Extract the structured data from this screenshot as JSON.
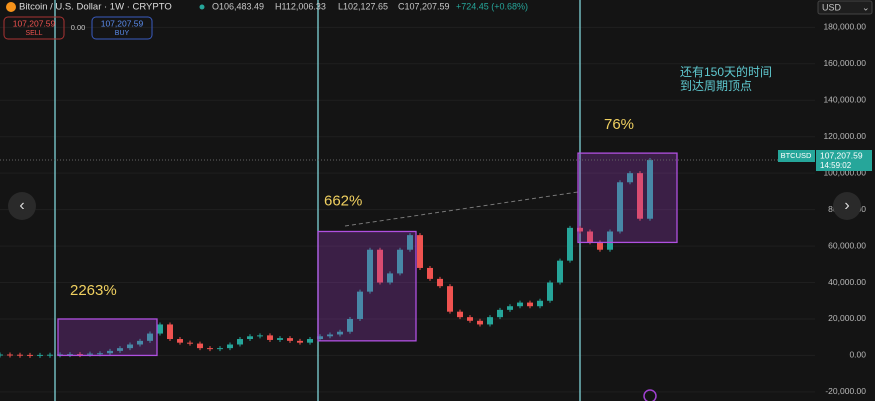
{
  "chart_data": {
    "type": "candlestick",
    "header": {
      "symbol": "Bitcoin / U.S. Dollar · 1W · CRYPTO",
      "open": "O106,483.49",
      "high": "H112,006.33",
      "low": "L102,127.65",
      "close": "C107,207.59",
      "change": "+724.45 (+0.68%)"
    },
    "trade": {
      "sell_price": "107,207.59",
      "sell": "SELL",
      "spread": "0.00",
      "buy_price": "107,207.59",
      "buy": "BUY"
    },
    "currency": "USD",
    "price_tag": {
      "symbol": "BTCUSD",
      "price": "107,207.59",
      "time": "14:59:02"
    },
    "annotation": [
      "还有150天的时间",
      "到达周期顶点"
    ],
    "boxes": [
      {
        "label": "2263%",
        "low": 0,
        "high": 20000
      },
      {
        "label": "662%",
        "low": 8000,
        "high": 68000
      },
      {
        "label": "76%",
        "low": 62000,
        "high": 111000
      }
    ],
    "values": [
      500,
      400,
      300,
      250,
      300,
      400,
      600,
      700,
      650,
      1000,
      1200,
      2500,
      4000,
      6000,
      8000,
      12000,
      17000,
      9000,
      7000,
      6500,
      4000,
      3800,
      4000,
      6000,
      9000,
      10500,
      11000,
      8500,
      9500,
      8000,
      7000,
      9000,
      10500,
      11500,
      13000,
      20000,
      35000,
      58000,
      40000,
      45000,
      58000,
      66000,
      48000,
      42000,
      38000,
      24000,
      21000,
      19000,
      17000,
      21000,
      25000,
      27000,
      29000,
      27000,
      30000,
      40000,
      52000,
      70000,
      68000,
      62000,
      58000,
      68000,
      95000,
      100000,
      75000,
      107207.59
    ],
    "up_color": "#26a69a",
    "down_color": "#ef5350",
    "ylim": [
      -25000,
      195000
    ],
    "yticks": [
      {
        "value": -20000,
        "label": "-20,000.00"
      },
      {
        "value": 0,
        "label": "0.00"
      },
      {
        "value": 20000,
        "label": "20,000.00"
      },
      {
        "value": 40000,
        "label": "40,000.00"
      },
      {
        "value": 60000,
        "label": "60,000.00"
      },
      {
        "value": 80000,
        "label": "80,000.00"
      },
      {
        "value": 100000,
        "label": "100,000.00"
      },
      {
        "value": 120000,
        "label": "120,000.00"
      },
      {
        "value": 140000,
        "label": "140,000.00"
      },
      {
        "value": 160000,
        "label": "160,000.00"
      },
      {
        "value": 180000,
        "label": "180,000.00"
      }
    ],
    "grid": true
  }
}
